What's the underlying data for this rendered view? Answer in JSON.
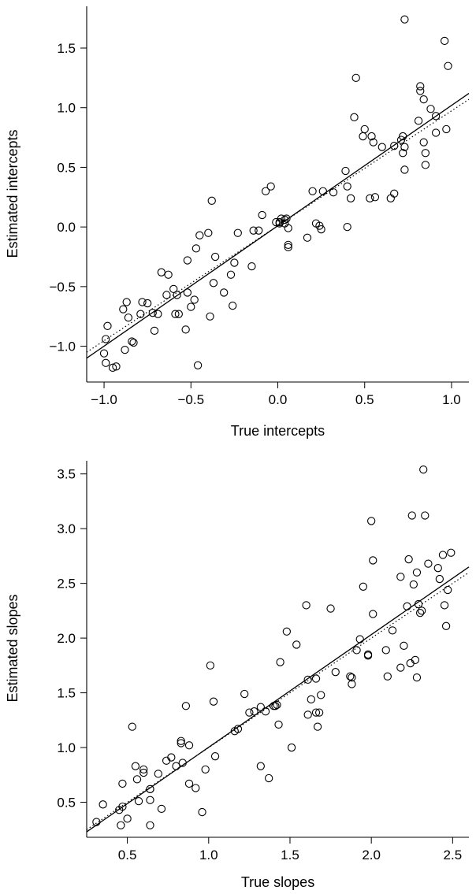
{
  "chart_data": [
    {
      "type": "scatter",
      "xlabel": "True intercepts",
      "ylabel": "Estimated intercepts",
      "xlim": [
        -1.1,
        1.1
      ],
      "ylim": [
        -1.3,
        1.85
      ],
      "xticks": [
        -1.0,
        -0.5,
        0.0,
        0.5,
        1.0
      ],
      "xtick_labels": [
        "−1.0",
        "−0.5",
        "0.0",
        "0.5",
        "1.0"
      ],
      "yticks": [
        -1.0,
        -0.5,
        0.0,
        0.5,
        1.0,
        1.5
      ],
      "ytick_labels": [
        "−1.0",
        "−0.5",
        "0.0",
        "0.5",
        "1.0",
        "1.5"
      ],
      "fit_line": {
        "style": "solid",
        "x": [
          -1.1,
          1.1
        ],
        "y": [
          -1.1,
          1.12
        ]
      },
      "identity_line": {
        "style": "dotted",
        "x": [
          -1.1,
          1.1
        ],
        "y": [
          -1.05,
          1.07
        ]
      },
      "points": [
        [
          -1.0,
          -1.06
        ],
        [
          -0.99,
          -1.14
        ],
        [
          -0.99,
          -0.94
        ],
        [
          -0.98,
          -0.83
        ],
        [
          -0.95,
          -1.18
        ],
        [
          -0.93,
          -1.17
        ],
        [
          -0.89,
          -0.69
        ],
        [
          -0.88,
          -1.03
        ],
        [
          -0.87,
          -0.63
        ],
        [
          -0.86,
          -0.76
        ],
        [
          -0.84,
          -0.96
        ],
        [
          -0.83,
          -0.97
        ],
        [
          -0.79,
          -0.73
        ],
        [
          -0.78,
          -0.63
        ],
        [
          -0.75,
          -0.64
        ],
        [
          -0.72,
          -0.72
        ],
        [
          -0.71,
          -0.87
        ],
        [
          -0.69,
          -0.73
        ],
        [
          -0.67,
          -0.38
        ],
        [
          -0.64,
          -0.57
        ],
        [
          -0.63,
          -0.4
        ],
        [
          -0.6,
          -0.52
        ],
        [
          -0.59,
          -0.73
        ],
        [
          -0.58,
          -0.57
        ],
        [
          -0.57,
          -0.73
        ],
        [
          -0.53,
          -0.86
        ],
        [
          -0.52,
          -0.28
        ],
        [
          -0.52,
          -0.55
        ],
        [
          -0.5,
          -0.67
        ],
        [
          -0.48,
          -0.61
        ],
        [
          -0.47,
          -0.18
        ],
        [
          -0.46,
          -1.16
        ],
        [
          -0.45,
          -0.07
        ],
        [
          -0.4,
          -0.05
        ],
        [
          -0.39,
          -0.75
        ],
        [
          -0.38,
          0.22
        ],
        [
          -0.37,
          -0.47
        ],
        [
          -0.36,
          -0.25
        ],
        [
          -0.31,
          -0.55
        ],
        [
          -0.27,
          -0.4
        ],
        [
          -0.26,
          -0.66
        ],
        [
          -0.25,
          -0.3
        ],
        [
          -0.23,
          -0.05
        ],
        [
          -0.15,
          -0.33
        ],
        [
          -0.14,
          -0.03
        ],
        [
          -0.11,
          -0.03
        ],
        [
          -0.09,
          0.1
        ],
        [
          -0.07,
          0.3
        ],
        [
          -0.04,
          0.34
        ],
        [
          -0.01,
          0.04
        ],
        [
          0.01,
          0.04
        ],
        [
          0.01,
          0.03
        ],
        [
          0.02,
          0.07
        ],
        [
          0.04,
          0.03
        ],
        [
          0.04,
          0.06
        ],
        [
          0.05,
          0.07
        ],
        [
          0.06,
          -0.01
        ],
        [
          0.06,
          -0.15
        ],
        [
          0.06,
          -0.17
        ],
        [
          0.17,
          -0.09
        ],
        [
          0.2,
          0.3
        ],
        [
          0.22,
          0.03
        ],
        [
          0.24,
          0.01
        ],
        [
          0.25,
          -0.02
        ],
        [
          0.26,
          0.3
        ],
        [
          0.32,
          0.29
        ],
        [
          0.39,
          0.47
        ],
        [
          0.4,
          0.34
        ],
        [
          0.4,
          0.0
        ],
        [
          0.42,
          0.24
        ],
        [
          0.44,
          0.92
        ],
        [
          0.45,
          1.25
        ],
        [
          0.49,
          0.76
        ],
        [
          0.5,
          0.82
        ],
        [
          0.53,
          0.24
        ],
        [
          0.54,
          0.76
        ],
        [
          0.55,
          0.71
        ],
        [
          0.56,
          0.25
        ],
        [
          0.6,
          0.67
        ],
        [
          0.65,
          0.24
        ],
        [
          0.67,
          0.28
        ],
        [
          0.67,
          0.68
        ],
        [
          0.71,
          0.73
        ],
        [
          0.72,
          0.76
        ],
        [
          0.72,
          0.62
        ],
        [
          0.73,
          0.67
        ],
        [
          0.73,
          0.48
        ],
        [
          0.73,
          1.74
        ],
        [
          0.81,
          0.89
        ],
        [
          0.82,
          1.18
        ],
        [
          0.82,
          1.14
        ],
        [
          0.84,
          0.71
        ],
        [
          0.84,
          1.07
        ],
        [
          0.85,
          0.62
        ],
        [
          0.85,
          0.52
        ],
        [
          0.88,
          0.99
        ],
        [
          0.91,
          0.79
        ],
        [
          0.91,
          0.93
        ],
        [
          0.96,
          1.56
        ],
        [
          0.97,
          0.82
        ],
        [
          0.98,
          1.35
        ]
      ]
    },
    {
      "type": "scatter",
      "xlabel": "True slopes",
      "ylabel": "Estimated slopes",
      "xlim": [
        0.25,
        2.6
      ],
      "ylim": [
        0.18,
        3.62
      ],
      "xticks": [
        0.5,
        1.0,
        1.5,
        2.0,
        2.5
      ],
      "xtick_labels": [
        "0.5",
        "1.0",
        "1.5",
        "2.0",
        "2.5"
      ],
      "yticks": [
        0.5,
        1.0,
        1.5,
        2.0,
        2.5,
        3.0,
        3.5
      ],
      "ytick_labels": [
        "0.5",
        "1.0",
        "1.5",
        "2.0",
        "2.5",
        "3.0",
        "3.5"
      ],
      "fit_line": {
        "style": "solid",
        "x": [
          0.25,
          2.6
        ],
        "y": [
          0.23,
          2.65
        ]
      },
      "identity_line": {
        "style": "dotted",
        "x": [
          0.25,
          2.6
        ],
        "y": [
          0.25,
          2.6
        ]
      },
      "points": [
        [
          0.31,
          0.32
        ],
        [
          0.35,
          0.48
        ],
        [
          0.45,
          0.43
        ],
        [
          0.46,
          0.29
        ],
        [
          0.47,
          0.67
        ],
        [
          0.47,
          0.46
        ],
        [
          0.5,
          0.35
        ],
        [
          0.53,
          1.19
        ],
        [
          0.55,
          0.83
        ],
        [
          0.56,
          0.71
        ],
        [
          0.57,
          0.51
        ],
        [
          0.6,
          0.8
        ],
        [
          0.6,
          0.77
        ],
        [
          0.64,
          0.62
        ],
        [
          0.64,
          0.62
        ],
        [
          0.64,
          0.52
        ],
        [
          0.64,
          0.29
        ],
        [
          0.69,
          0.76
        ],
        [
          0.71,
          0.44
        ],
        [
          0.74,
          0.88
        ],
        [
          0.77,
          0.91
        ],
        [
          0.8,
          0.83
        ],
        [
          0.83,
          1.06
        ],
        [
          0.83,
          1.04
        ],
        [
          0.84,
          0.86
        ],
        [
          0.86,
          1.38
        ],
        [
          0.88,
          1.02
        ],
        [
          0.88,
          0.67
        ],
        [
          0.92,
          0.63
        ],
        [
          0.96,
          0.41
        ],
        [
          0.98,
          0.8
        ],
        [
          1.01,
          1.75
        ],
        [
          1.03,
          1.42
        ],
        [
          1.04,
          0.92
        ],
        [
          1.16,
          1.15
        ],
        [
          1.18,
          1.17
        ],
        [
          1.22,
          1.49
        ],
        [
          1.25,
          1.32
        ],
        [
          1.28,
          1.33
        ],
        [
          1.32,
          1.37
        ],
        [
          1.32,
          0.83
        ],
        [
          1.35,
          1.33
        ],
        [
          1.37,
          0.72
        ],
        [
          1.4,
          1.38
        ],
        [
          1.41,
          1.38
        ],
        [
          1.42,
          1.39
        ],
        [
          1.43,
          1.21
        ],
        [
          1.44,
          1.78
        ],
        [
          1.48,
          2.06
        ],
        [
          1.51,
          1.0
        ],
        [
          1.54,
          1.94
        ],
        [
          1.6,
          2.3
        ],
        [
          1.61,
          1.3
        ],
        [
          1.61,
          1.62
        ],
        [
          1.63,
          1.44
        ],
        [
          1.66,
          1.63
        ],
        [
          1.66,
          1.32
        ],
        [
          1.67,
          1.19
        ],
        [
          1.68,
          1.32
        ],
        [
          1.69,
          1.48
        ],
        [
          1.75,
          2.27
        ],
        [
          1.78,
          1.69
        ],
        [
          1.87,
          1.65
        ],
        [
          1.88,
          1.58
        ],
        [
          1.88,
          1.64
        ],
        [
          1.91,
          1.89
        ],
        [
          1.93,
          1.99
        ],
        [
          1.95,
          2.47
        ],
        [
          1.98,
          1.85
        ],
        [
          1.98,
          1.84
        ],
        [
          2.0,
          3.07
        ],
        [
          2.01,
          2.71
        ],
        [
          2.01,
          2.22
        ],
        [
          2.09,
          1.89
        ],
        [
          2.1,
          1.65
        ],
        [
          2.13,
          2.07
        ],
        [
          2.18,
          2.56
        ],
        [
          2.18,
          1.73
        ],
        [
          2.2,
          1.93
        ],
        [
          2.22,
          2.29
        ],
        [
          2.23,
          2.72
        ],
        [
          2.24,
          1.77
        ],
        [
          2.25,
          3.12
        ],
        [
          2.26,
          2.49
        ],
        [
          2.27,
          1.8
        ],
        [
          2.28,
          2.6
        ],
        [
          2.28,
          1.64
        ],
        [
          2.29,
          2.31
        ],
        [
          2.3,
          2.23
        ],
        [
          2.31,
          2.25
        ],
        [
          2.32,
          3.54
        ],
        [
          2.33,
          3.12
        ],
        [
          2.35,
          2.68
        ],
        [
          2.41,
          2.64
        ],
        [
          2.42,
          2.54
        ],
        [
          2.44,
          2.76
        ],
        [
          2.45,
          2.3
        ],
        [
          2.46,
          2.11
        ],
        [
          2.47,
          2.44
        ],
        [
          2.49,
          2.78
        ]
      ]
    }
  ]
}
